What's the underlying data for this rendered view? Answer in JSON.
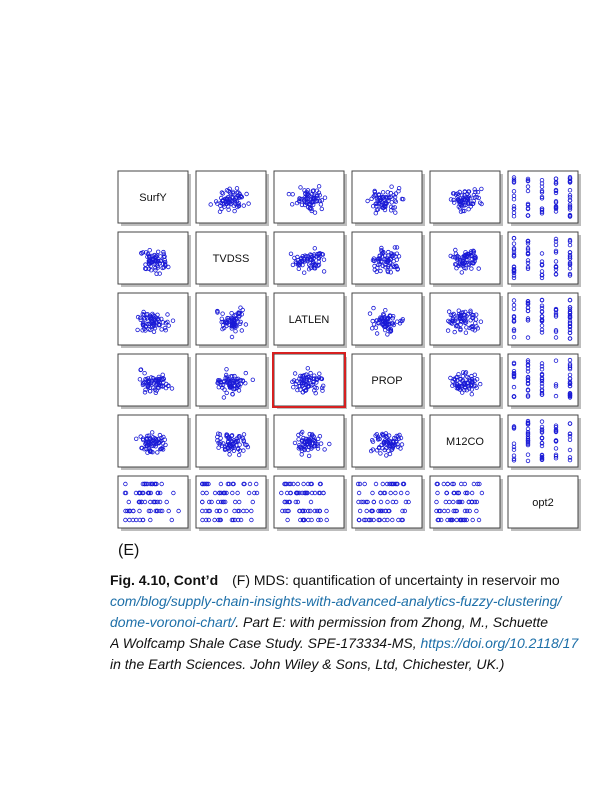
{
  "matrix": {
    "variables": [
      "SurfY",
      "TVDSS",
      "LATLEN",
      "PROP",
      "M12CO",
      "opt2"
    ],
    "highlighted_cell": {
      "row": 3,
      "col": 2
    },
    "colors": {
      "points": "#1a1ad6",
      "highlight": "#d62020",
      "frame": "#444444"
    }
  },
  "panel_letter": "(E)",
  "caption": {
    "fig_label": "Fig. 4.10, Cont’d",
    "line1_text": "(F) MDS: quantification of uncertainty in reservoir mo",
    "line2_link": "com/blog/supply-chain-insights-with-advanced-analytics-fuzzy-clustering",
    "line2_tail": "/",
    "line3_link": "dome-voronoi-chart/",
    "line3_text": ". Part E: with permission from Zhong, M., Schuette",
    "line4_text": "A Wolfcamp Shale Case Study. SPE-173334-MS, ",
    "line4_link": "https://doi.org/10.2118/17",
    "line5_text": "in the Earth Sciences. John Wiley & Sons, Ltd, Chichester, UK.)"
  }
}
